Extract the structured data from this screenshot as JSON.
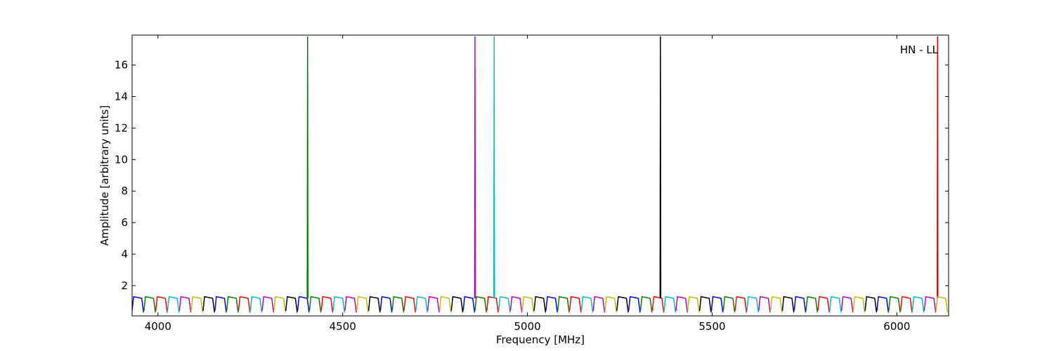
{
  "chart_data": {
    "type": "line",
    "annotation": "HN - LL",
    "x_label": "Frequency [MHz]",
    "y_label": "Amplitude [arbitrary units]",
    "xlim": [
      3930,
      6140
    ],
    "ylim": [
      0.08,
      17.9
    ],
    "xticks": [
      4000,
      4500,
      5000,
      5500,
      6000
    ],
    "yticks": [
      2,
      4,
      6,
      8,
      10,
      12,
      14,
      16
    ],
    "series": [
      {
        "color": "#0000ff",
        "x": [
          3930,
          3934,
          3956,
          3961,
          null,
          4154,
          4158,
          4180,
          4185,
          null,
          4378,
          4382,
          4404,
          4409,
          null,
          4602,
          4606,
          4628,
          4633,
          null,
          4826,
          4830,
          4852,
          4857,
          null,
          5050,
          5054,
          5076,
          5081,
          null,
          5274,
          5278,
          5300,
          5305,
          null,
          5498,
          5502,
          5524,
          5529,
          null,
          5722,
          5726,
          5748,
          5753,
          null,
          5946,
          5950,
          5972,
          5977
        ],
        "values": [
          0.4,
          1.3,
          1.2,
          0.3,
          null,
          0.4,
          1.3,
          1.2,
          0.3,
          null,
          0.4,
          1.3,
          1.2,
          0.3,
          null,
          0.4,
          1.3,
          1.2,
          0.3,
          null,
          0.4,
          1.3,
          1.2,
          0.3,
          null,
          0.4,
          1.3,
          1.2,
          0.3,
          null,
          0.4,
          1.3,
          1.2,
          0.3,
          null,
          0.4,
          1.3,
          1.2,
          0.3,
          null,
          0.4,
          1.3,
          1.2,
          0.3,
          null,
          0.4,
          1.3,
          1.2,
          0.3
        ]
      },
      {
        "color": "#008000",
        "x": [
          3962,
          3966,
          3988,
          3993,
          null,
          4186,
          4190,
          4212,
          4217,
          null,
          4410,
          4414,
          4436,
          4441,
          null,
          4634,
          4638,
          4660,
          4665,
          null,
          4858,
          4862,
          4884,
          4889,
          null,
          5082,
          5086,
          5108,
          5113,
          null,
          5306,
          5310,
          5332,
          5337,
          null,
          5530,
          5534,
          5556,
          5561,
          null,
          5754,
          5758,
          5780,
          5785,
          null,
          5978,
          5982,
          6004,
          6009,
          null,
          4404,
          4405,
          4406
        ],
        "values": [
          0.4,
          1.3,
          1.2,
          0.3,
          null,
          0.4,
          1.3,
          1.2,
          0.3,
          null,
          0.4,
          1.3,
          1.2,
          0.3,
          null,
          0.4,
          1.3,
          1.2,
          0.3,
          null,
          0.4,
          1.3,
          1.2,
          0.3,
          null,
          0.4,
          1.3,
          1.2,
          0.3,
          null,
          0.4,
          1.3,
          1.2,
          0.3,
          null,
          0.4,
          1.3,
          1.2,
          0.3,
          null,
          0.4,
          1.3,
          1.2,
          0.3,
          null,
          0.4,
          1.3,
          1.2,
          0.3,
          null,
          1.2,
          17.8,
          1.2
        ]
      },
      {
        "color": "#ff0000",
        "x": [
          3994,
          3998,
          4020,
          4025,
          null,
          4218,
          4222,
          4244,
          4249,
          null,
          4442,
          4446,
          4468,
          4473,
          null,
          4666,
          4670,
          4692,
          4697,
          null,
          4890,
          4894,
          4916,
          4921,
          null,
          5114,
          5118,
          5140,
          5145,
          null,
          5338,
          5342,
          5364,
          5369,
          null,
          5562,
          5566,
          5588,
          5593,
          null,
          5786,
          5790,
          5812,
          5817,
          null,
          6010,
          6014,
          6036,
          6041,
          null,
          6109,
          6110,
          6111
        ],
        "values": [
          0.4,
          1.3,
          1.2,
          0.3,
          null,
          0.4,
          1.3,
          1.2,
          0.3,
          null,
          0.4,
          1.3,
          1.2,
          0.3,
          null,
          0.4,
          1.3,
          1.2,
          0.3,
          null,
          0.4,
          1.3,
          1.2,
          0.3,
          null,
          0.4,
          1.3,
          1.2,
          0.3,
          null,
          0.4,
          1.3,
          1.2,
          0.3,
          null,
          0.4,
          1.3,
          1.2,
          0.3,
          null,
          0.4,
          1.3,
          1.2,
          0.3,
          null,
          0.4,
          1.3,
          1.2,
          0.3,
          null,
          1.2,
          17.8,
          1.2
        ]
      },
      {
        "color": "#00bfbf",
        "x": [
          4026,
          4030,
          4052,
          4057,
          null,
          4250,
          4254,
          4276,
          4281,
          null,
          4474,
          4478,
          4500,
          4505,
          null,
          4698,
          4702,
          4724,
          4729,
          null,
          4922,
          4926,
          4948,
          4953,
          null,
          5146,
          5150,
          5172,
          5177,
          null,
          5370,
          5374,
          5396,
          5401,
          null,
          5594,
          5598,
          5620,
          5625,
          null,
          5818,
          5822,
          5844,
          5849,
          null,
          6042,
          6046,
          6068,
          6073,
          null,
          4909,
          4910,
          4911
        ],
        "values": [
          0.4,
          1.3,
          1.2,
          0.3,
          null,
          0.4,
          1.3,
          1.2,
          0.3,
          null,
          0.4,
          1.3,
          1.2,
          0.3,
          null,
          0.4,
          1.3,
          1.2,
          0.3,
          null,
          0.4,
          1.3,
          1.2,
          0.3,
          null,
          0.4,
          1.3,
          1.2,
          0.3,
          null,
          0.4,
          1.3,
          1.2,
          0.3,
          null,
          0.4,
          1.3,
          1.2,
          0.3,
          null,
          0.4,
          1.3,
          1.2,
          0.3,
          null,
          0.4,
          1.3,
          1.2,
          0.3,
          null,
          1.2,
          17.8,
          1.2
        ]
      },
      {
        "color": "#bf00bf",
        "x": [
          4058,
          4062,
          4084,
          4089,
          null,
          4282,
          4286,
          4308,
          4313,
          null,
          4506,
          4510,
          4532,
          4537,
          null,
          4730,
          4734,
          4756,
          4761,
          null,
          4954,
          4958,
          4980,
          4985,
          null,
          5178,
          5182,
          5204,
          5209,
          null,
          5402,
          5406,
          5428,
          5433,
          null,
          5626,
          5630,
          5652,
          5657,
          null,
          5850,
          5854,
          5876,
          5881,
          null,
          6074,
          6078,
          6100,
          6105,
          null,
          4857,
          4858,
          4859
        ],
        "values": [
          0.4,
          1.3,
          1.2,
          0.3,
          null,
          0.4,
          1.3,
          1.2,
          0.3,
          null,
          0.4,
          1.3,
          1.2,
          0.3,
          null,
          0.4,
          1.3,
          1.2,
          0.3,
          null,
          0.4,
          1.3,
          1.2,
          0.3,
          null,
          0.4,
          1.3,
          1.2,
          0.3,
          null,
          0.4,
          1.3,
          1.2,
          0.3,
          null,
          0.4,
          1.3,
          1.2,
          0.3,
          null,
          0.4,
          1.3,
          1.2,
          0.3,
          null,
          0.4,
          1.3,
          1.2,
          0.3,
          null,
          1.2,
          17.8,
          1.2
        ]
      },
      {
        "color": "#bfbf00",
        "x": [
          4090,
          4094,
          4116,
          4121,
          null,
          4314,
          4318,
          4340,
          4345,
          null,
          4538,
          4542,
          4564,
          4569,
          null,
          4762,
          4766,
          4788,
          4793,
          null,
          4986,
          4990,
          5012,
          5017,
          null,
          5210,
          5214,
          5236,
          5241,
          null,
          5434,
          5438,
          5460,
          5465,
          null,
          5658,
          5662,
          5684,
          5689,
          null,
          5882,
          5886,
          5908,
          5913,
          null,
          6106,
          6110,
          6132,
          6137
        ],
        "values": [
          0.4,
          1.3,
          1.2,
          0.3,
          null,
          0.4,
          1.3,
          1.2,
          0.3,
          null,
          0.4,
          1.3,
          1.2,
          0.3,
          null,
          0.4,
          1.3,
          1.2,
          0.3,
          null,
          0.4,
          1.3,
          1.2,
          0.3,
          null,
          0.4,
          1.3,
          1.2,
          0.3,
          null,
          0.4,
          1.3,
          1.2,
          0.3,
          null,
          0.4,
          1.3,
          1.2,
          0.3,
          null,
          0.4,
          1.3,
          1.2,
          0.3,
          null,
          0.4,
          1.3,
          1.2,
          0.3
        ]
      },
      {
        "color": "#000000",
        "x": [
          4122,
          4126,
          4148,
          4153,
          null,
          4346,
          4350,
          4372,
          4377,
          null,
          4570,
          4574,
          4596,
          4601,
          null,
          4794,
          4798,
          4820,
          4825,
          null,
          5018,
          5022,
          5044,
          5049,
          null,
          5242,
          5246,
          5268,
          5273,
          null,
          5466,
          5470,
          5492,
          5497,
          null,
          5690,
          5694,
          5716,
          5721,
          null,
          5914,
          5918,
          5940,
          5945,
          null,
          5359,
          5360,
          5361
        ],
        "values": [
          0.4,
          1.3,
          1.2,
          0.3,
          null,
          0.4,
          1.3,
          1.2,
          0.3,
          null,
          0.4,
          1.3,
          1.2,
          0.3,
          null,
          0.4,
          1.3,
          1.2,
          0.3,
          null,
          0.4,
          1.3,
          1.2,
          0.3,
          null,
          0.4,
          1.3,
          1.2,
          0.3,
          null,
          0.4,
          1.3,
          1.2,
          0.3,
          null,
          0.4,
          1.3,
          1.2,
          0.3,
          null,
          0.4,
          1.3,
          1.2,
          0.3,
          null,
          1.2,
          17.8,
          1.2
        ]
      }
    ]
  }
}
